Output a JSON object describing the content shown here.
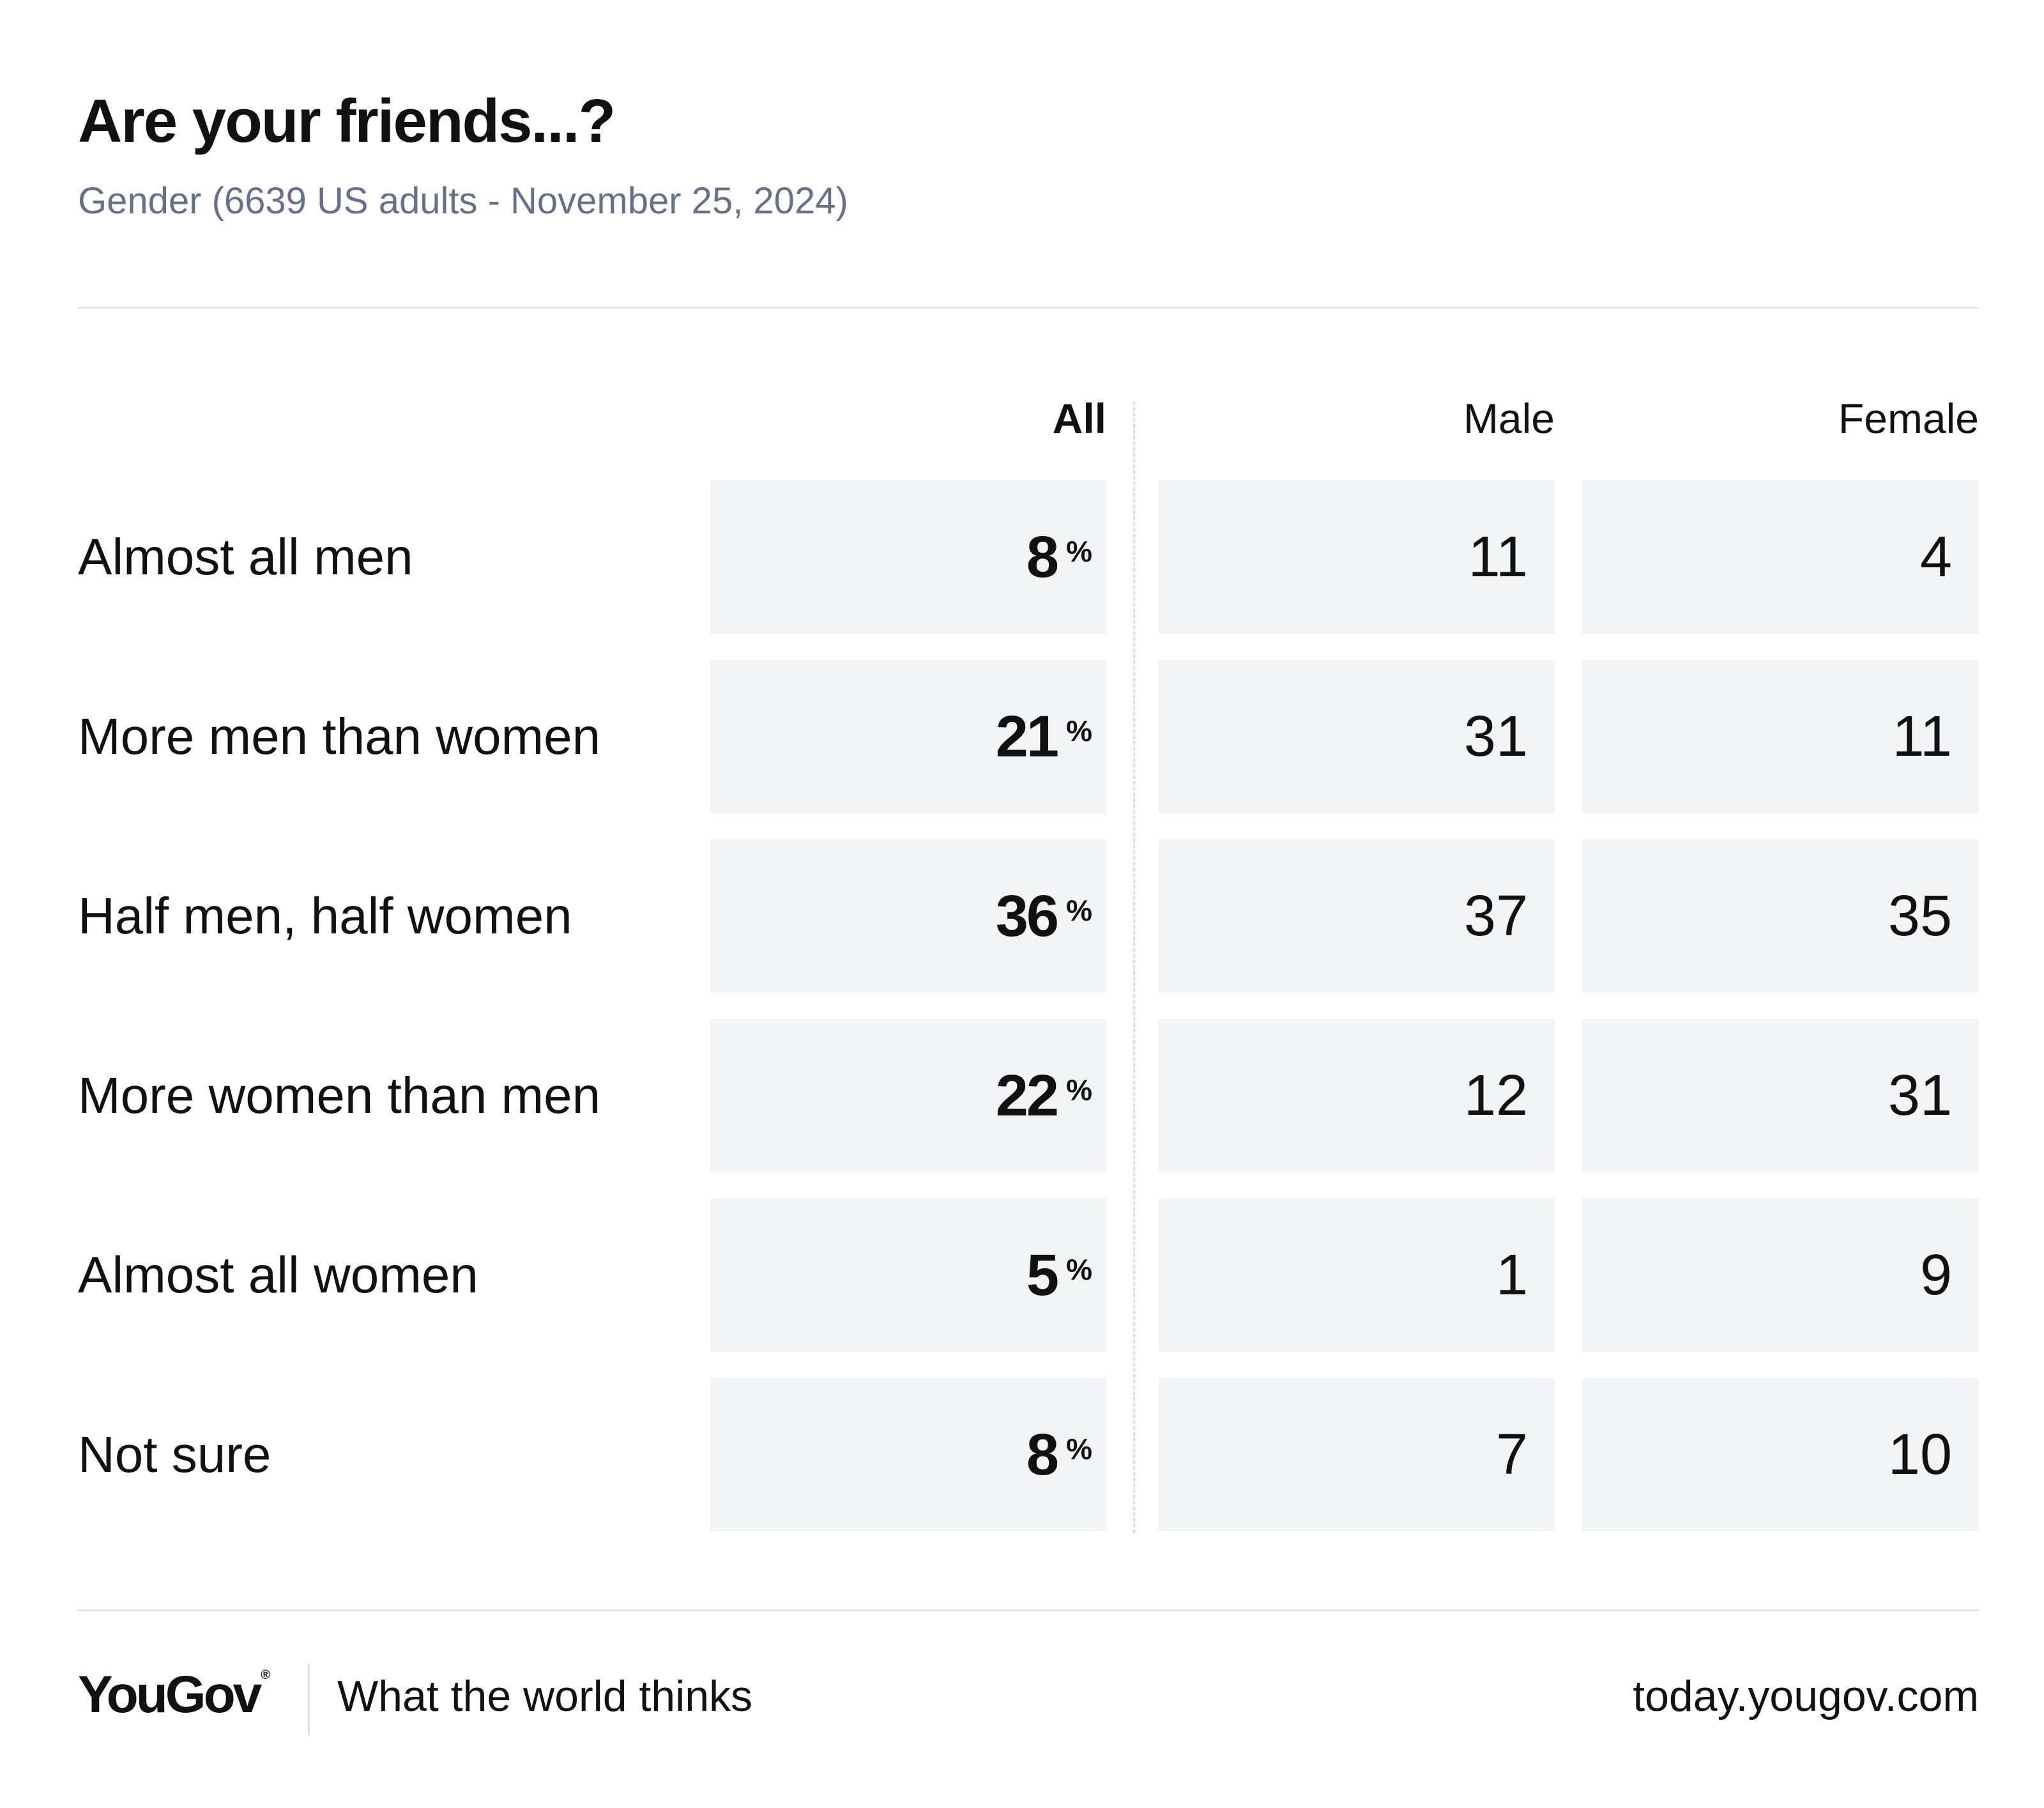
{
  "title": "Are your friends...?",
  "subtitle": "Gender (6639 US adults - November 25, 2024)",
  "columns": {
    "all": "All",
    "male": "Male",
    "female": "Female"
  },
  "percent_sign": "%",
  "chart_data": {
    "type": "table",
    "title": "Are your friends...?",
    "subtitle": "Gender (6639 US adults - November 25, 2024)",
    "columns": [
      "All",
      "Male",
      "Female"
    ],
    "rows": [
      {
        "label": "Almost all men",
        "all": 8,
        "male": 11,
        "female": 4
      },
      {
        "label": "More men than women",
        "all": 21,
        "male": 31,
        "female": 11
      },
      {
        "label": "Half men, half women",
        "all": 36,
        "male": 37,
        "female": 35
      },
      {
        "label": "More women than men",
        "all": 22,
        "male": 12,
        "female": 31
      },
      {
        "label": "Almost all women",
        "all": 5,
        "male": 1,
        "female": 9
      },
      {
        "label": "Not sure",
        "all": 8,
        "male": 7,
        "female": 10
      }
    ]
  },
  "footer": {
    "logo": "YouGov",
    "logo_mark": "®",
    "tagline": "What the world thinks",
    "url": "today.yougov.com"
  }
}
